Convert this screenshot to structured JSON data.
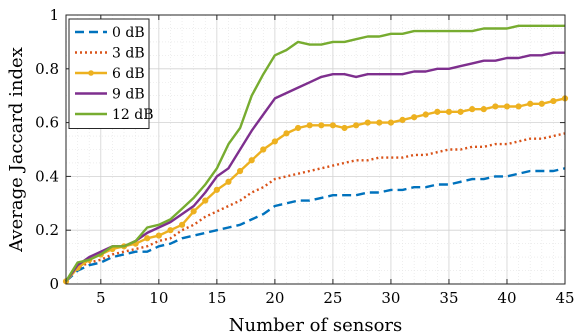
{
  "chart_data": {
    "type": "line",
    "title": "",
    "xlabel": "Number of sensors",
    "ylabel": "Average Jaccard index",
    "xlim": [
      2,
      45
    ],
    "ylim": [
      0,
      1
    ],
    "xticks": [
      5,
      10,
      15,
      20,
      25,
      30,
      35,
      40,
      45
    ],
    "yticks": [
      0,
      0.2,
      0.4,
      0.6,
      0.8,
      1
    ],
    "ytick_labels": [
      "0",
      "0.2",
      "0.4",
      "0.6",
      "0.8",
      "1"
    ],
    "grid": true,
    "minor_grid": true,
    "legend_position": "top-left",
    "x": [
      2,
      3,
      4,
      5,
      6,
      7,
      8,
      9,
      10,
      11,
      12,
      13,
      14,
      15,
      16,
      17,
      18,
      19,
      20,
      21,
      22,
      23,
      24,
      25,
      26,
      27,
      28,
      29,
      30,
      31,
      32,
      33,
      34,
      35,
      36,
      37,
      38,
      39,
      40,
      41,
      42,
      43,
      44,
      45
    ],
    "series": [
      {
        "name": "0 dB",
        "color": "#0072BD",
        "dash": "9 5",
        "marker": "none",
        "values": [
          0.01,
          0.05,
          0.07,
          0.08,
          0.1,
          0.11,
          0.12,
          0.12,
          0.14,
          0.15,
          0.17,
          0.18,
          0.19,
          0.2,
          0.21,
          0.22,
          0.24,
          0.26,
          0.29,
          0.3,
          0.31,
          0.31,
          0.32,
          0.33,
          0.33,
          0.33,
          0.34,
          0.34,
          0.35,
          0.35,
          0.36,
          0.36,
          0.37,
          0.37,
          0.38,
          0.39,
          0.39,
          0.4,
          0.4,
          0.41,
          0.42,
          0.42,
          0.42,
          0.43
        ]
      },
      {
        "name": "3 dB",
        "color": "#D95319",
        "dash": "2 3",
        "marker": "none",
        "values": [
          0.01,
          0.06,
          0.08,
          0.09,
          0.11,
          0.12,
          0.13,
          0.14,
          0.16,
          0.17,
          0.2,
          0.22,
          0.25,
          0.27,
          0.29,
          0.31,
          0.34,
          0.36,
          0.39,
          0.4,
          0.41,
          0.42,
          0.43,
          0.44,
          0.45,
          0.46,
          0.46,
          0.47,
          0.47,
          0.47,
          0.48,
          0.48,
          0.49,
          0.5,
          0.5,
          0.51,
          0.51,
          0.52,
          0.52,
          0.53,
          0.54,
          0.54,
          0.55,
          0.56
        ]
      },
      {
        "name": "6 dB",
        "color": "#EDB120",
        "dash": "none",
        "marker": "circle",
        "values": [
          0.01,
          0.06,
          0.09,
          0.11,
          0.13,
          0.14,
          0.15,
          0.17,
          0.18,
          0.2,
          0.22,
          0.27,
          0.31,
          0.35,
          0.38,
          0.42,
          0.46,
          0.5,
          0.53,
          0.56,
          0.58,
          0.59,
          0.59,
          0.59,
          0.58,
          0.59,
          0.6,
          0.6,
          0.6,
          0.61,
          0.62,
          0.63,
          0.64,
          0.64,
          0.64,
          0.65,
          0.65,
          0.66,
          0.66,
          0.66,
          0.67,
          0.67,
          0.68,
          0.69
        ]
      },
      {
        "name": "9 dB",
        "color": "#7E2F8E",
        "dash": "none",
        "marker": "none",
        "values": [
          0.01,
          0.07,
          0.1,
          0.12,
          0.14,
          0.14,
          0.16,
          0.19,
          0.21,
          0.23,
          0.26,
          0.29,
          0.34,
          0.4,
          0.43,
          0.5,
          0.57,
          0.63,
          0.69,
          0.71,
          0.73,
          0.75,
          0.77,
          0.78,
          0.78,
          0.77,
          0.78,
          0.78,
          0.78,
          0.78,
          0.79,
          0.79,
          0.8,
          0.8,
          0.81,
          0.82,
          0.83,
          0.83,
          0.84,
          0.84,
          0.85,
          0.85,
          0.86,
          0.86
        ]
      },
      {
        "name": "12 dB",
        "color": "#77AC30",
        "dash": "none",
        "marker": "none",
        "values": [
          0.01,
          0.08,
          0.09,
          0.11,
          0.14,
          0.14,
          0.16,
          0.21,
          0.22,
          0.24,
          0.28,
          0.32,
          0.37,
          0.43,
          0.52,
          0.58,
          0.7,
          0.78,
          0.85,
          0.87,
          0.9,
          0.89,
          0.89,
          0.9,
          0.9,
          0.91,
          0.92,
          0.92,
          0.93,
          0.93,
          0.94,
          0.94,
          0.94,
          0.94,
          0.94,
          0.94,
          0.95,
          0.95,
          0.95,
          0.96,
          0.96,
          0.96,
          0.96,
          0.96
        ]
      }
    ]
  }
}
